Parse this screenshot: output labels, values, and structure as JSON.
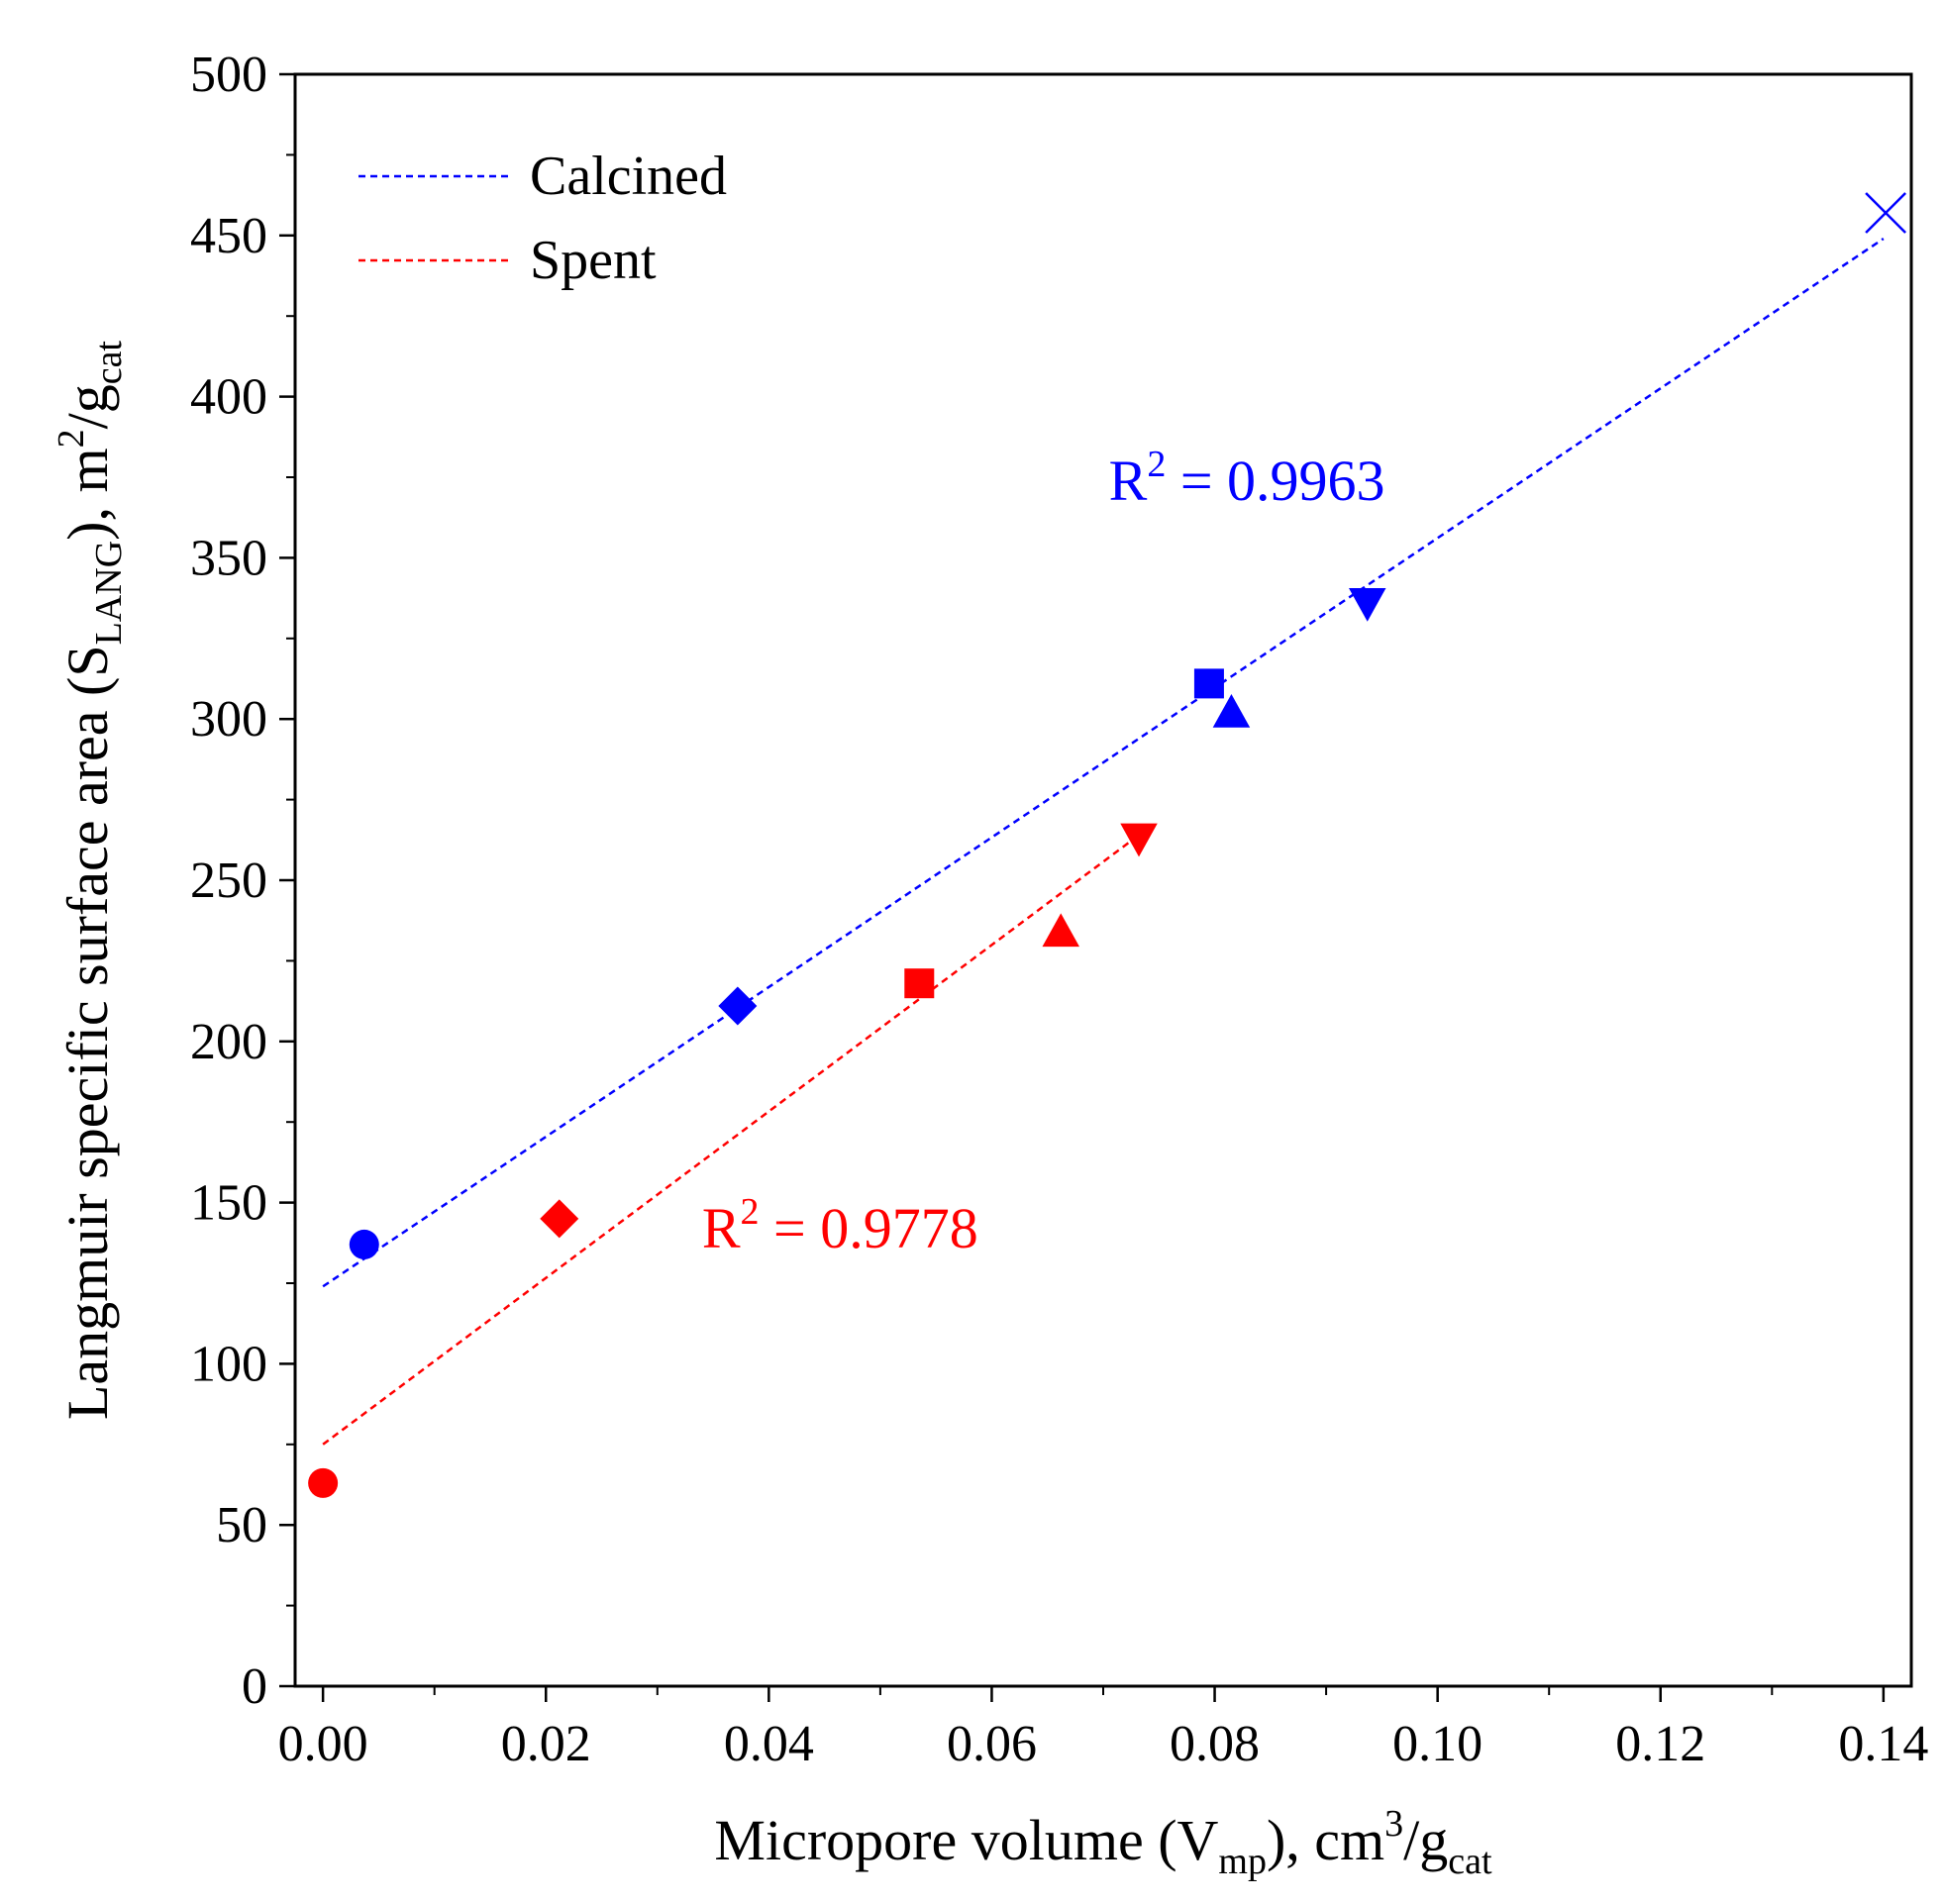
{
  "chart_data": {
    "type": "scatter",
    "xlabel": {
      "main": "Micropore volume (V",
      "sub1": "mp",
      "mid": "), cm",
      "sup": "3",
      "mid2": "/g",
      "sub2": "cat"
    },
    "ylabel": {
      "main": "Langmuir specific surface area (S",
      "sub1": "LANG",
      "mid": "), m",
      "sup": "2",
      "mid2": "/g",
      "sub2": "cat"
    },
    "xlim": [
      -0.0025,
      0.1425
    ],
    "ylim": [
      0,
      500
    ],
    "x_ticks": [
      0.0,
      0.02,
      0.04,
      0.06,
      0.08,
      0.1,
      0.12,
      0.14
    ],
    "x_tick_labels": [
      "0.00",
      "0.02",
      "0.04",
      "0.06",
      "0.08",
      "0.10",
      "0.12",
      "0.14"
    ],
    "y_ticks": [
      0,
      50,
      100,
      150,
      200,
      250,
      300,
      350,
      400,
      450,
      500
    ],
    "y_tick_labels": [
      "0",
      "50",
      "100",
      "150",
      "200",
      "250",
      "300",
      "350",
      "400",
      "450",
      "500"
    ],
    "legend": {
      "position": "top-left",
      "entries": [
        {
          "label": "Calcined",
          "color": "#0000ff"
        },
        {
          "label": "Spent",
          "color": "#ff0000"
        }
      ]
    },
    "series": [
      {
        "name": "Calcined",
        "color": "#0000ff",
        "points": [
          {
            "x": 0.0037,
            "y": 137,
            "marker": "circle"
          },
          {
            "x": 0.0372,
            "y": 211,
            "marker": "diamond"
          },
          {
            "x": 0.0795,
            "y": 311,
            "marker": "square"
          },
          {
            "x": 0.0815,
            "y": 302,
            "marker": "triangle-up"
          },
          {
            "x": 0.0937,
            "y": 336,
            "marker": "triangle-down"
          },
          {
            "x": 0.1402,
            "y": 457,
            "marker": "x"
          }
        ],
        "fit": {
          "x": [
            0.0,
            0.14
          ],
          "y": [
            124,
            449
          ]
        },
        "r2": {
          "prefix": "R",
          "sup": "2",
          "value": " = 0.9963",
          "x": 0.0705,
          "y": 368
        }
      },
      {
        "name": "Spent",
        "color": "#ff0000",
        "points": [
          {
            "x": 0.0,
            "y": 63,
            "marker": "circle"
          },
          {
            "x": 0.0212,
            "y": 145,
            "marker": "diamond"
          },
          {
            "x": 0.0535,
            "y": 218,
            "marker": "square"
          },
          {
            "x": 0.0662,
            "y": 234,
            "marker": "triangle-up"
          },
          {
            "x": 0.0732,
            "y": 263,
            "marker": "triangle-down"
          }
        ],
        "fit": {
          "x": [
            0.0,
            0.0732
          ],
          "y": [
            75,
            264
          ]
        },
        "r2": {
          "prefix": "R",
          "sup": "2",
          "value": " = 0.9778",
          "x": 0.034,
          "y": 136
        }
      }
    ]
  }
}
